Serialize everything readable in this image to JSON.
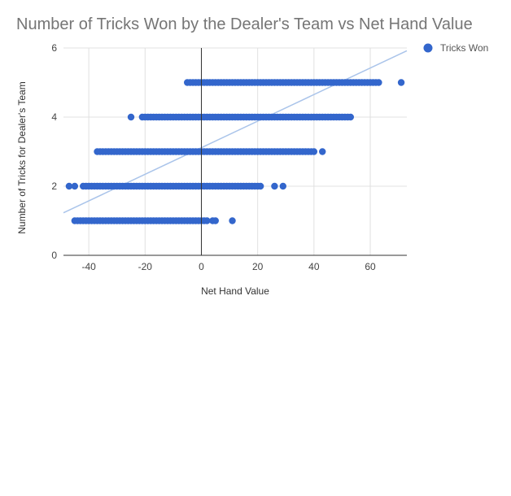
{
  "chart_data": {
    "type": "scatter",
    "title": "Number of Tricks Won by the Dealer's Team vs Net Hand Value",
    "xlabel": "Net Hand Value",
    "ylabel": "Number of Tricks for Dealer's Team",
    "xlim": [
      -49,
      73
    ],
    "ylim": [
      0,
      6
    ],
    "x_ticks": [
      -40,
      -20,
      0,
      20,
      40,
      60
    ],
    "y_ticks": [
      0,
      2,
      4,
      6
    ],
    "x_tick_labels": [
      "-40",
      "-20",
      "0",
      "20",
      "40",
      "60"
    ],
    "y_tick_labels": [
      "0",
      "2",
      "4",
      "6"
    ],
    "grid": true,
    "legend_position": "top-right",
    "colors": {
      "series": "#3366cc",
      "trendline": "#aac4ea",
      "grid": "#e0e0e0",
      "axis": "#333333"
    },
    "series": [
      {
        "name": "Tricks Won",
        "bands": [
          {
            "y": 1,
            "x_min": -45,
            "x_max": 2,
            "step": 1,
            "extra_x": [
              4,
              5,
              11
            ]
          },
          {
            "y": 2,
            "x_min": -42,
            "x_max": 21,
            "step": 1,
            "extra_x": [
              -47,
              -45,
              26,
              29
            ]
          },
          {
            "y": 3,
            "x_min": -37,
            "x_max": 40,
            "step": 1,
            "extra_x": [
              43
            ]
          },
          {
            "y": 4,
            "x_min": -21,
            "x_max": 53,
            "step": 1,
            "extra_x": [
              -25
            ]
          },
          {
            "y": 5,
            "x_min": -5,
            "x_max": 63,
            "step": 1,
            "extra_x": [
              71
            ]
          }
        ]
      }
    ],
    "trendline": {
      "x": [
        -49,
        73
      ],
      "y": [
        1.23,
        5.92
      ]
    }
  }
}
